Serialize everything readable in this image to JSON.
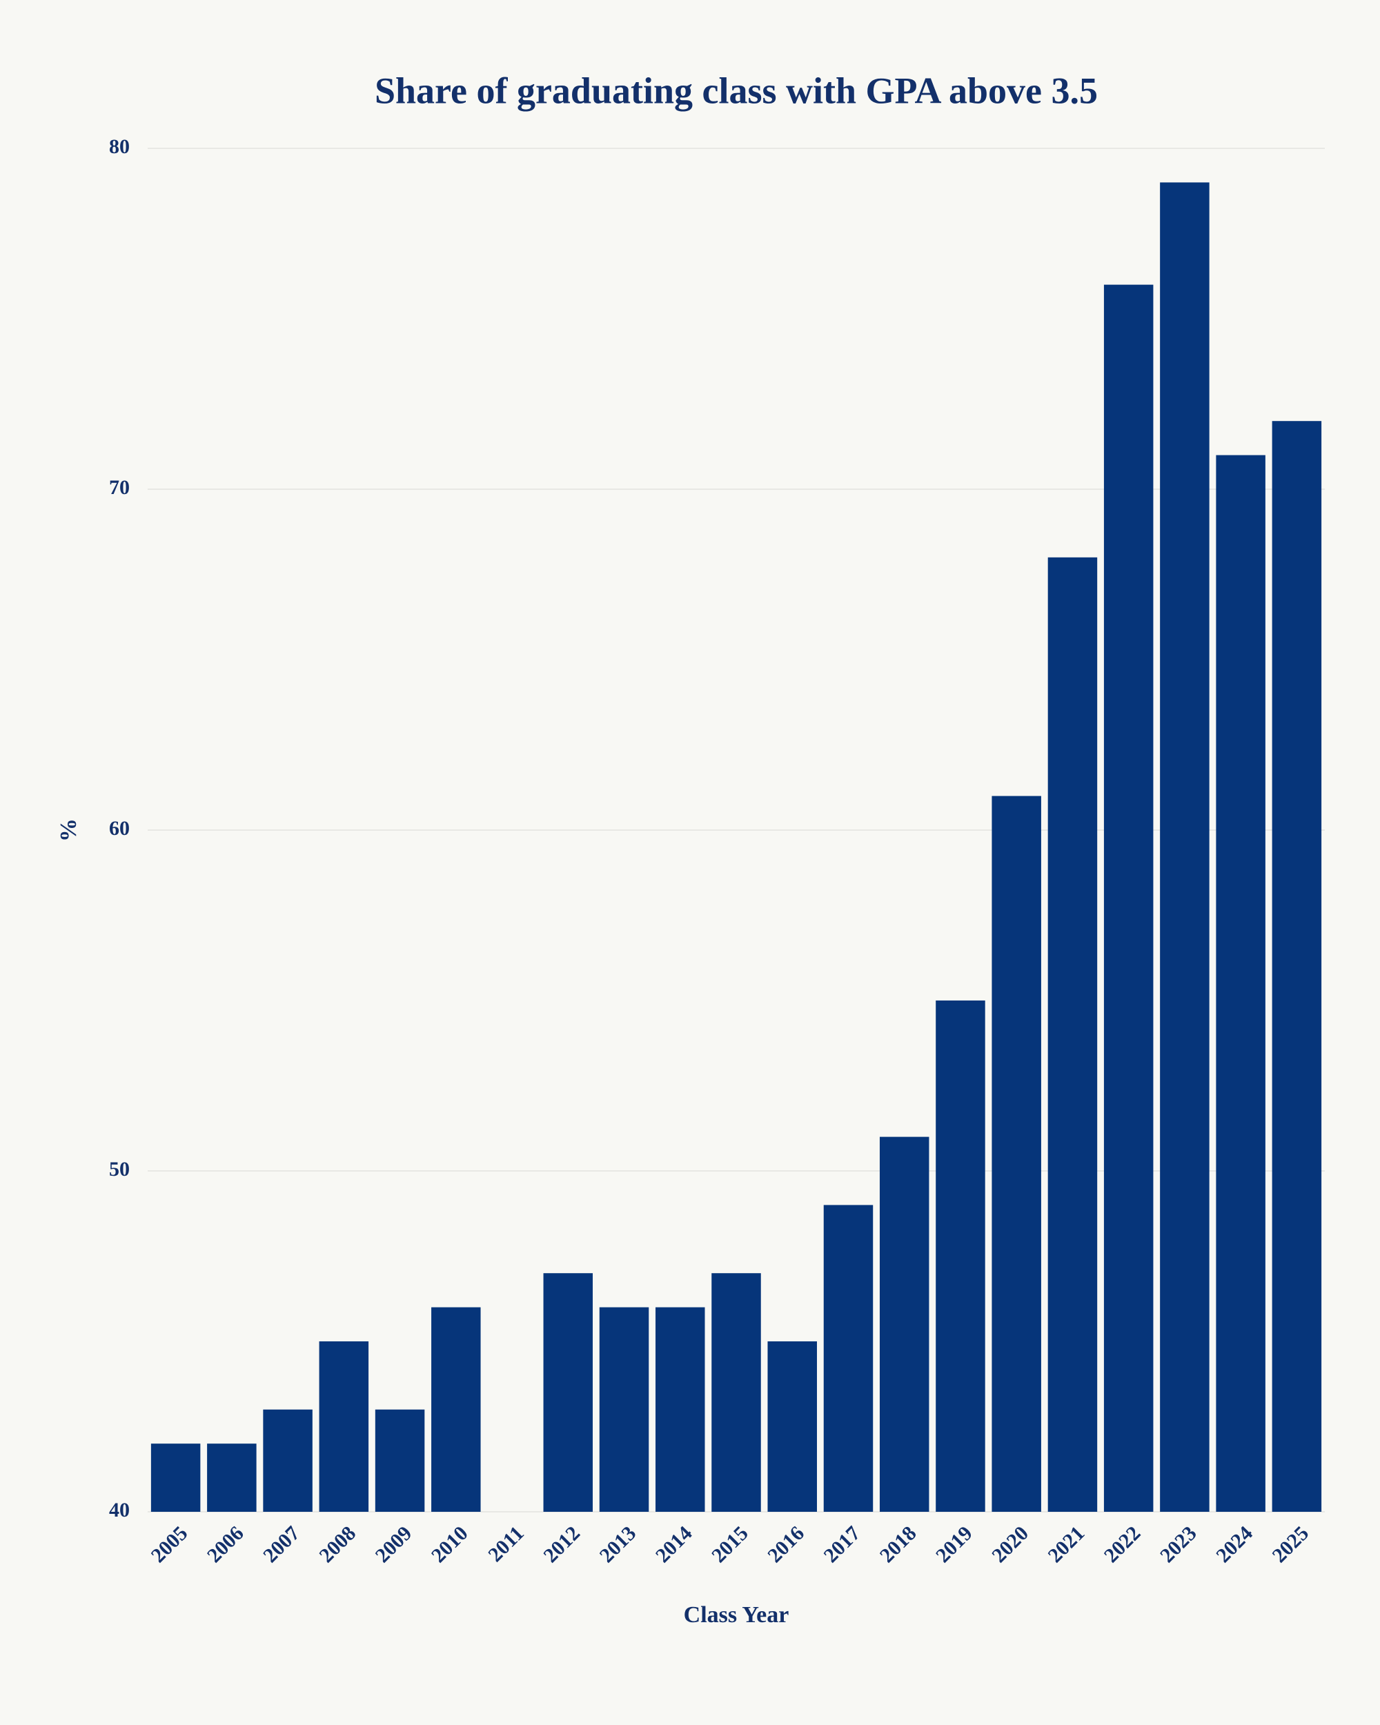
{
  "chart_data": {
    "type": "bar",
    "title": "Share of graduating class with GPA above 3.5",
    "x_label": "Class Year",
    "y_label": "%",
    "categories": [
      "2005",
      "2006",
      "2007",
      "2008",
      "2009",
      "2010",
      "2011",
      "2012",
      "2013",
      "2014",
      "2015",
      "2016",
      "2017",
      "2018",
      "2019",
      "2020",
      "2021",
      "2022",
      "2023",
      "2024",
      "2025"
    ],
    "values": [
      42,
      42,
      43,
      45,
      43,
      46,
      null,
      47,
      46,
      46,
      47,
      45,
      49,
      51,
      55,
      61,
      68,
      76,
      79,
      71,
      72
    ],
    "color": "#06357a",
    "ylim": [
      40,
      80
    ],
    "yticks": [
      40,
      50,
      60,
      70,
      80
    ],
    "grid": true
  }
}
